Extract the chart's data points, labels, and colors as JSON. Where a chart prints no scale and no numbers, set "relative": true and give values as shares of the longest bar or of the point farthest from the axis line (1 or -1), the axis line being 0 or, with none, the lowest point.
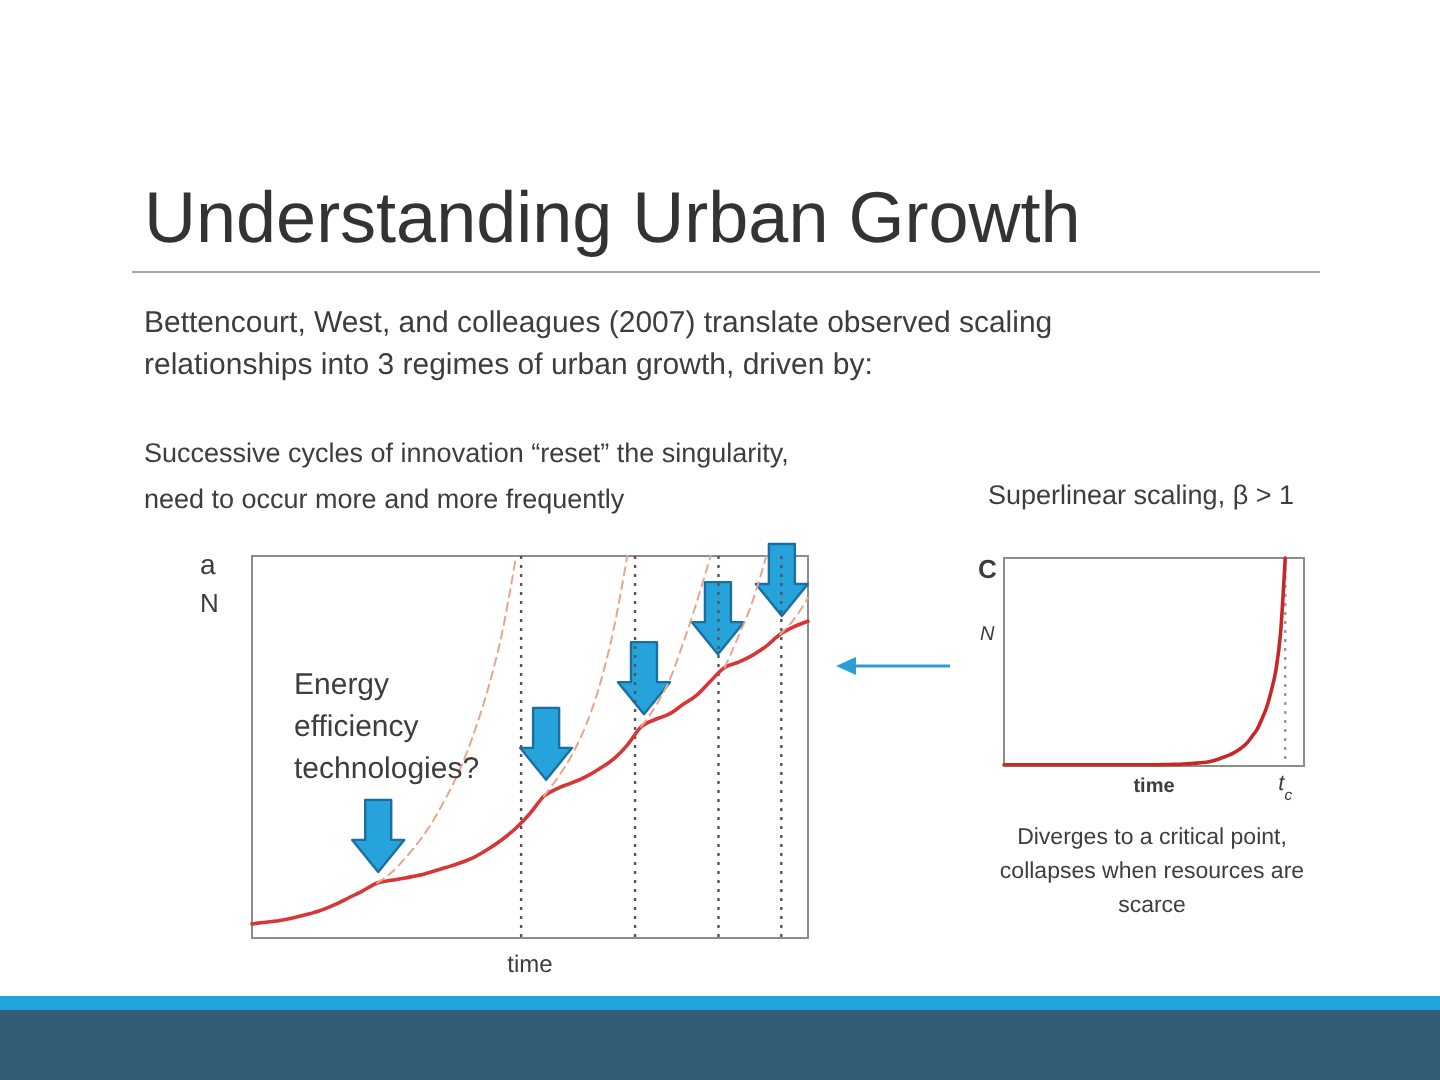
{
  "chart_data": [
    {
      "type": "other",
      "title": "Understanding Urban Growth",
      "subtitle": "Bettencourt, West, and colleagues (2007) translate observed scaling relationships into 3 regimes of urban growth, driven by:"
    },
    {
      "type": "line",
      "title": "Successive cycles of innovation “reset” the singularity, need to occur more and more frequently",
      "xlabel": "time",
      "ylabel": "N",
      "annotations": [
        "a",
        "Energy efficiency technologies?"
      ],
      "relative": true,
      "categories": [
        null,
        null,
        null,
        null,
        null,
        null,
        null,
        null,
        null,
        null,
        null,
        null,
        null,
        null,
        null,
        null,
        null,
        null,
        null,
        null,
        null,
        null,
        null,
        null,
        null,
        null,
        null,
        null,
        null,
        null,
        null,
        null,
        null,
        null,
        null,
        null,
        null,
        null,
        null,
        null,
        null
      ],
      "series": [
        {
          "color": "#d83535",
          "values": [
            0.037,
            0.041,
            0.046,
            0.053,
            0.062,
            0.073,
            0.088,
            0.106,
            0.124,
            0.144,
            0.151,
            0.157,
            0.164,
            0.174,
            0.185,
            0.197,
            0.212,
            0.233,
            0.258,
            0.288,
            0.326,
            0.371,
            0.392,
            0.406,
            0.422,
            0.443,
            0.468,
            0.505,
            0.553,
            0.572,
            0.586,
            0.611,
            0.636,
            0.673,
            0.708,
            0.722,
            0.74,
            0.764,
            0.795,
            0.815,
            0.829
          ]
        },
        {
          "color": "#e9a58c",
          "line_style": "dashed",
          "values": [
            null,
            null,
            null,
            null,
            null,
            null,
            null,
            null,
            null,
            0.144,
            0.17,
            0.208,
            0.252,
            0.305,
            0.37,
            0.445,
            0.54,
            0.655,
            0.8,
            1.0,
            null,
            null,
            null,
            null,
            null,
            null,
            null,
            null,
            null,
            null,
            null,
            null,
            null,
            null,
            null,
            null,
            null,
            null,
            null,
            null,
            null
          ]
        },
        {
          "color": "#e9a58c",
          "line_style": "dashed",
          "values": [
            null,
            null,
            null,
            null,
            null,
            null,
            null,
            null,
            null,
            null,
            null,
            null,
            null,
            null,
            null,
            null,
            null,
            null,
            null,
            null,
            null,
            0.371,
            0.42,
            0.478,
            0.555,
            0.66,
            0.805,
            1.0,
            null,
            null,
            null,
            null,
            null,
            null,
            null,
            null,
            null,
            null,
            null,
            null,
            null
          ]
        },
        {
          "color": "#e9a58c",
          "line_style": "dashed",
          "values": [
            null,
            null,
            null,
            null,
            null,
            null,
            null,
            null,
            null,
            null,
            null,
            null,
            null,
            null,
            null,
            null,
            null,
            null,
            null,
            null,
            null,
            null,
            null,
            null,
            null,
            null,
            null,
            null,
            0.553,
            0.605,
            0.672,
            0.77,
            0.88,
            1.0,
            null,
            null,
            null,
            null,
            null,
            null,
            null
          ]
        },
        {
          "color": "#e9a58c",
          "line_style": "dashed",
          "values": [
            null,
            null,
            null,
            null,
            null,
            null,
            null,
            null,
            null,
            null,
            null,
            null,
            null,
            null,
            null,
            null,
            null,
            null,
            null,
            null,
            null,
            null,
            null,
            null,
            null,
            null,
            null,
            null,
            null,
            null,
            null,
            null,
            null,
            null,
            0.708,
            0.79,
            0.88,
            1.0,
            null,
            null,
            null
          ]
        },
        {
          "color": "#e9a58c",
          "line_style": "dashed",
          "values": [
            null,
            null,
            null,
            null,
            null,
            null,
            null,
            null,
            null,
            null,
            null,
            null,
            null,
            null,
            null,
            null,
            null,
            null,
            null,
            null,
            null,
            null,
            null,
            null,
            null,
            null,
            null,
            null,
            null,
            null,
            null,
            null,
            null,
            null,
            null,
            null,
            null,
            null,
            0.795,
            0.835,
            0.89
          ]
        }
      ]
    },
    {
      "type": "line",
      "title": "Superlinear scaling, β > 1",
      "xlabel": "time",
      "ylabel": "N",
      "annotations": [
        "C",
        "Diverges to a critical point, collapses when resources are scarce",
        "t$_{c}$"
      ],
      "relative": true,
      "categories": [
        null,
        null,
        null,
        null,
        null,
        null,
        null,
        null,
        null,
        null,
        null,
        null,
        null,
        null,
        null,
        null,
        null,
        null,
        null,
        null,
        null,
        null,
        null,
        null,
        null,
        null,
        null,
        null,
        null,
        null,
        null,
        null,
        null,
        null,
        null,
        null,
        null,
        null,
        null,
        null,
        null,
        null,
        null,
        null,
        null,
        null,
        null,
        null,
        null,
        null,
        null,
        null,
        null,
        null,
        null,
        null,
        null,
        null,
        null,
        null,
        null,
        null,
        null,
        null,
        null
      ],
      "series": [
        {
          "color": "#c62828",
          "values": [
            0.006,
            0.006,
            0.006,
            0.006,
            0.006,
            0.006,
            0.006,
            0.006,
            0.006,
            0.006,
            0.006,
            0.006,
            0.006,
            0.006,
            0.006,
            0.006,
            0.006,
            0.006,
            0.006,
            0.006,
            0.006,
            0.006,
            0.006,
            0.006,
            0.006,
            0.006,
            0.006,
            0.006,
            0.006,
            0.006,
            0.006,
            0.006,
            0.006,
            0.006,
            0.007,
            0.007,
            0.008,
            0.008,
            0.009,
            0.01,
            0.012,
            0.014,
            0.016,
            0.018,
            0.022,
            0.028,
            0.035,
            0.043,
            0.052,
            0.063,
            0.077,
            0.093,
            0.115,
            0.145,
            0.176,
            0.225,
            0.28,
            0.36,
            0.46,
            0.64,
            1.0,
            null,
            null,
            null,
            null
          ]
        }
      ]
    }
  ]
}
